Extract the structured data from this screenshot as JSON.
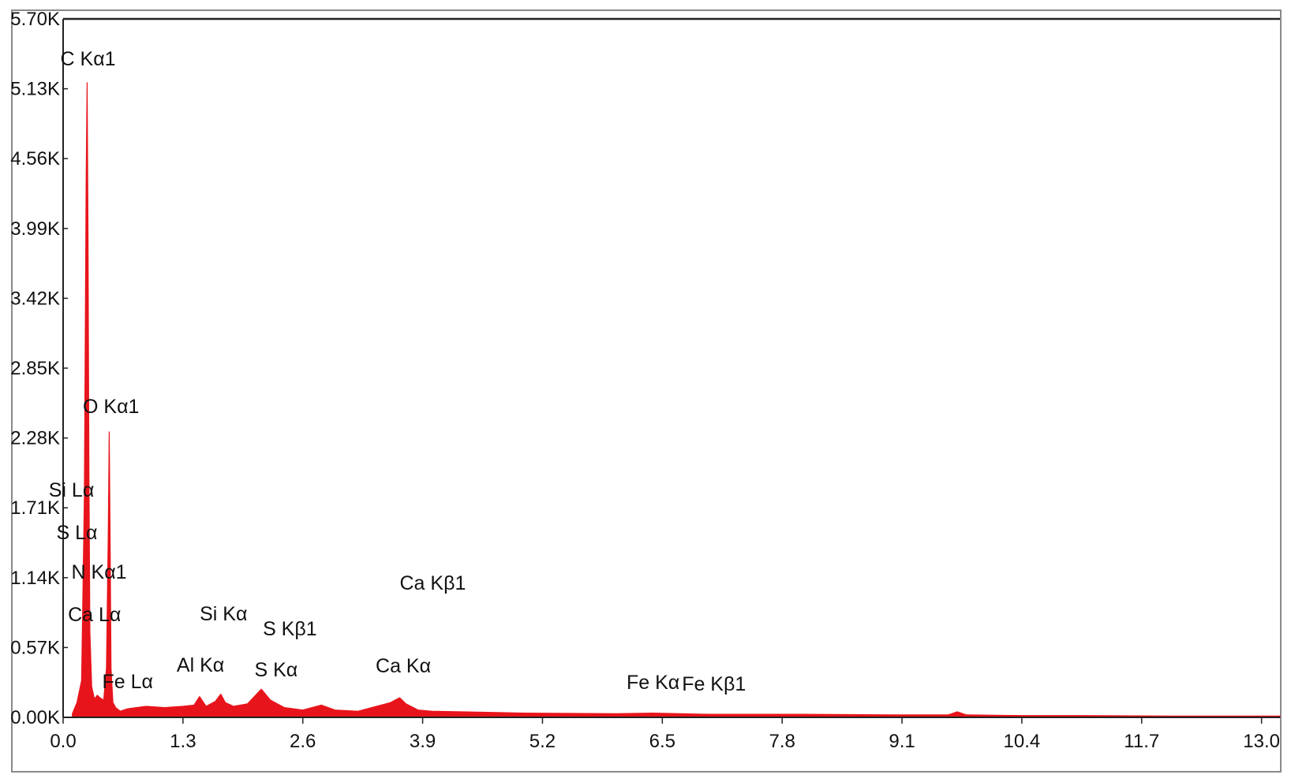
{
  "chart_data": {
    "type": "area",
    "title": "",
    "xlabel": "",
    "ylabel": "",
    "xlim": [
      0.0,
      13.2
    ],
    "ylim": [
      0,
      5700
    ],
    "grid": false,
    "color": "#e8141b",
    "x_ticks": [
      "0.0",
      "1.3",
      "2.6",
      "3.9",
      "5.2",
      "6.5",
      "7.8",
      "9.1",
      "10.4",
      "11.7",
      "13.0"
    ],
    "y_ticks": [
      "0.00K",
      "0.57K",
      "1.14K",
      "1.71K",
      "2.28K",
      "2.85K",
      "3.42K",
      "3.99K",
      "4.56K",
      "5.13K",
      "5.70K"
    ],
    "series": [
      {
        "x": [
          0.1,
          0.15,
          0.2,
          0.23,
          0.25,
          0.26,
          0.27,
          0.28,
          0.29,
          0.31,
          0.34,
          0.37,
          0.4,
          0.44,
          0.47,
          0.49,
          0.5,
          0.51,
          0.52,
          0.54,
          0.57,
          0.62,
          0.7,
          0.9,
          1.1,
          1.3,
          1.42,
          1.48,
          1.55,
          1.65,
          1.71,
          1.76,
          1.85,
          2.0,
          2.15,
          2.25,
          2.4,
          2.6,
          2.8,
          2.95,
          3.2,
          3.55,
          3.65,
          3.72,
          3.85,
          4.0,
          5.0,
          6.0,
          6.4,
          7.0,
          8.0,
          9.0,
          9.6,
          9.7,
          9.8,
          10.4,
          11.0,
          12.0,
          13.2
        ],
        "y": [
          30,
          120,
          300,
          1800,
          4400,
          5180,
          4000,
          2000,
          700,
          250,
          150,
          180,
          160,
          140,
          400,
          1500,
          2330,
          1400,
          400,
          120,
          80,
          50,
          70,
          90,
          80,
          90,
          100,
          170,
          90,
          130,
          190,
          120,
          90,
          110,
          230,
          140,
          80,
          60,
          100,
          60,
          50,
          120,
          160,
          110,
          60,
          50,
          35,
          30,
          35,
          25,
          25,
          20,
          20,
          45,
          20,
          15,
          15,
          10,
          10
        ]
      }
    ],
    "annotations": [
      {
        "text": "C  Kα1",
        "x": 0.27
      },
      {
        "text": "O  Kα1",
        "x": 0.52
      },
      {
        "text": "Si Lα",
        "x": 0.09
      },
      {
        "text": "S  Lα",
        "x": 0.15
      },
      {
        "text": "N  Kα1",
        "x": 0.39
      },
      {
        "text": "Ca Lα",
        "x": 0.34
      },
      {
        "text": "Fe Lα",
        "x": 0.7
      },
      {
        "text": "Al Kα",
        "x": 1.49
      },
      {
        "text": "Si Kα",
        "x": 1.74
      },
      {
        "text": "S  Kα",
        "x": 2.31
      },
      {
        "text": "S  Kβ1",
        "x": 2.46
      },
      {
        "text": "Ca Kα",
        "x": 3.69
      },
      {
        "text": "Ca Kβ1",
        "x": 4.01
      },
      {
        "text": "Fe Kα",
        "x": 6.4
      },
      {
        "text": "Fe Kβ1",
        "x": 7.06
      }
    ]
  }
}
